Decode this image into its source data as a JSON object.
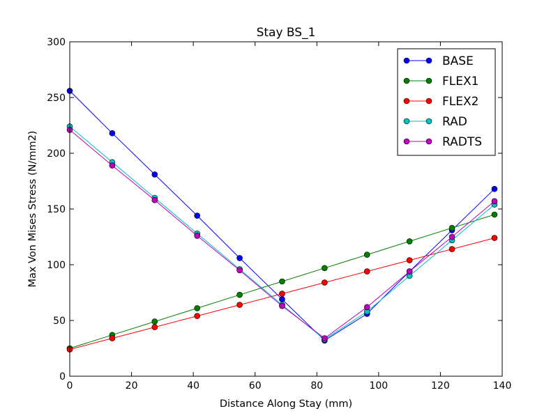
{
  "chart_data": {
    "type": "line",
    "title": "Stay BS_1",
    "xlabel": "Distance Along Stay (mm)",
    "ylabel": "Max Von Mises Stress (N/mm2)",
    "xlim": [
      0,
      140
    ],
    "ylim": [
      0,
      300
    ],
    "xticks": [
      0,
      20,
      40,
      60,
      80,
      100,
      120,
      140
    ],
    "yticks": [
      0,
      50,
      100,
      150,
      200,
      250,
      300
    ],
    "grid": false,
    "legend_position": "top-right",
    "x": [
      0,
      13.75,
      27.5,
      41.25,
      55,
      68.75,
      82.5,
      96.25,
      110,
      123.75,
      137.5
    ],
    "series": [
      {
        "name": "BASE",
        "color": "#0000ff",
        "values": [
          256,
          218,
          181,
          144,
          106,
          69,
          32,
          56,
          94,
          131,
          168
        ]
      },
      {
        "name": "FLEX1",
        "color": "#008000",
        "values": [
          25,
          37,
          49,
          61,
          73,
          85,
          97,
          109,
          121,
          133,
          145
        ]
      },
      {
        "name": "FLEX2",
        "color": "#ff0000",
        "values": [
          24,
          34,
          44,
          54,
          64,
          74,
          84,
          94,
          104,
          114,
          124
        ]
      },
      {
        "name": "RAD",
        "color": "#00bfbf",
        "values": [
          224,
          192,
          160,
          128,
          96,
          64,
          33,
          58,
          90,
          122,
          154
        ]
      },
      {
        "name": "RADTS",
        "color": "#bf00bf",
        "values": [
          221,
          189,
          158,
          126,
          95,
          63,
          34,
          62,
          94,
          125,
          157
        ]
      }
    ]
  }
}
